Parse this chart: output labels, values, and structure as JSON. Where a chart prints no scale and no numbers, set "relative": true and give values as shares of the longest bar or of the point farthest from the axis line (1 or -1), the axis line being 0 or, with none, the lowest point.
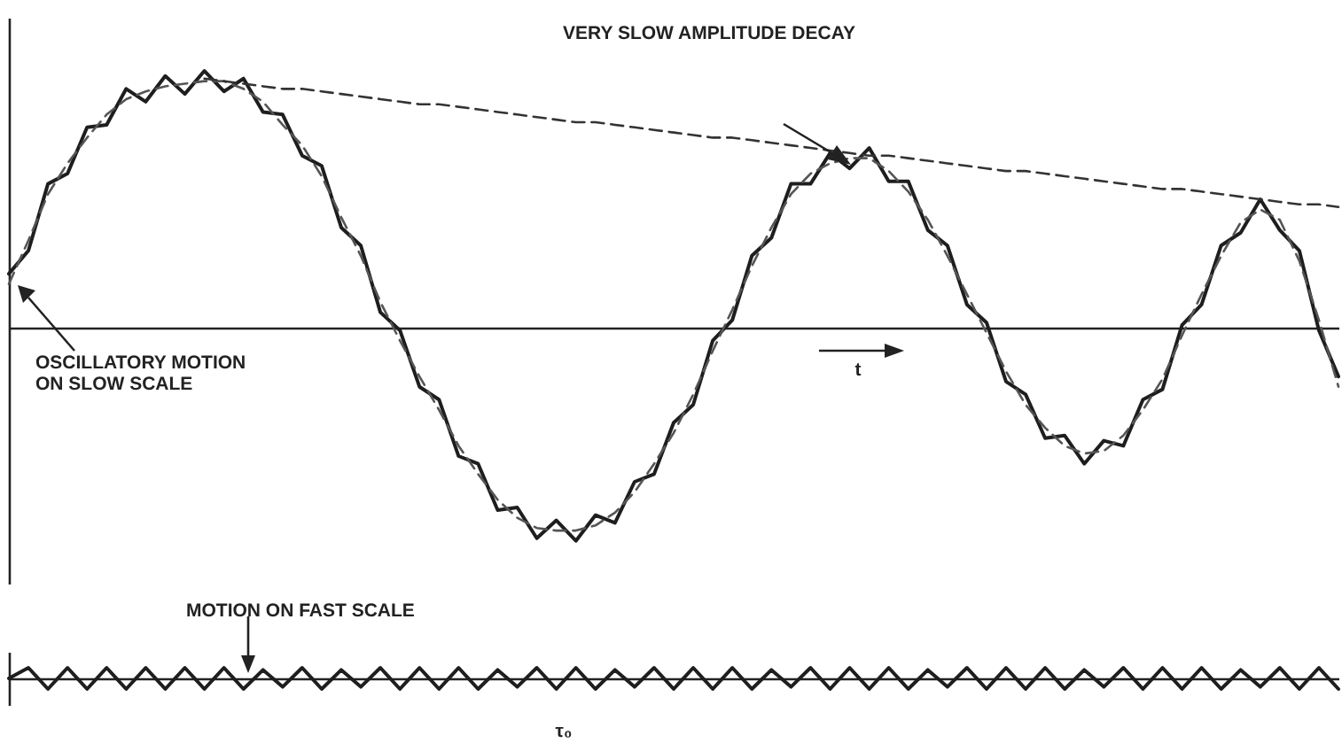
{
  "chart_data": [
    {
      "type": "line",
      "relative": true,
      "categories": [
        null,
        null,
        null,
        null,
        null,
        null,
        null,
        null,
        null,
        null,
        null,
        null,
        null,
        null,
        null,
        null,
        null,
        null,
        null,
        null,
        null,
        null,
        null,
        null,
        null,
        null,
        null,
        null,
        null,
        null,
        null,
        null,
        null,
        null,
        null,
        null,
        null,
        null,
        null,
        null,
        null,
        null,
        null,
        null,
        null,
        null,
        null,
        null,
        null,
        null,
        null,
        null,
        null,
        null,
        null,
        null,
        null,
        null,
        null,
        null,
        null,
        null,
        null,
        null,
        null,
        null,
        null,
        null,
        null
      ],
      "series": [
        {
          "color": "#1e1e1e",
          "line_style": "solid",
          "values": [
            0.21,
            0.3,
            0.56,
            0.6,
            0.78,
            0.79,
            0.93,
            0.88,
            0.98,
            0.91,
            1.0,
            0.92,
            0.97,
            0.84,
            0.83,
            0.67,
            0.63,
            0.39,
            0.32,
            0.06,
            -0.01,
            -0.23,
            -0.28,
            -0.5,
            -0.53,
            -0.71,
            -0.7,
            -0.82,
            -0.75,
            -0.83,
            -0.73,
            -0.76,
            -0.6,
            -0.57,
            -0.37,
            -0.3,
            -0.05,
            0.03,
            0.28,
            0.35,
            0.56,
            0.56,
            0.68,
            0.62,
            0.7,
            0.57,
            0.57,
            0.38,
            0.32,
            0.09,
            0.02,
            -0.21,
            -0.26,
            -0.43,
            -0.42,
            -0.53,
            -0.44,
            -0.46,
            -0.28,
            -0.24,
            0.01,
            0.09,
            0.32,
            0.37,
            0.5,
            0.38,
            0.3,
            -0.01,
            -0.19
          ]
        },
        {
          "color": "#555555",
          "line_style": "dashed",
          "values": [
            0.17,
            0.34,
            0.52,
            0.64,
            0.74,
            0.83,
            0.89,
            0.92,
            0.94,
            0.95,
            0.96,
            0.96,
            0.93,
            0.88,
            0.79,
            0.71,
            0.59,
            0.43,
            0.28,
            0.1,
            -0.05,
            -0.19,
            -0.32,
            -0.46,
            -0.57,
            -0.67,
            -0.74,
            -0.78,
            -0.79,
            -0.79,
            -0.77,
            -0.72,
            -0.64,
            -0.53,
            -0.41,
            -0.26,
            -0.09,
            0.07,
            0.24,
            0.39,
            0.52,
            0.6,
            0.64,
            0.66,
            0.66,
            0.61,
            0.53,
            0.42,
            0.28,
            0.13,
            -0.02,
            -0.17,
            -0.3,
            -0.39,
            -0.46,
            -0.49,
            -0.48,
            -0.42,
            -0.32,
            -0.2,
            -0.03,
            0.13,
            0.28,
            0.41,
            0.46,
            0.42,
            0.26,
            0.03,
            -0.23
          ]
        },
        {
          "color": "#333333",
          "line_style": "dashed",
          "values": [
            null,
            null,
            null,
            null,
            null,
            null,
            null,
            null,
            null,
            null,
            0.97,
            0.96,
            0.95,
            0.94,
            0.93,
            0.93,
            0.92,
            0.91,
            0.9,
            0.89,
            0.88,
            0.87,
            0.87,
            0.86,
            0.85,
            0.84,
            0.83,
            0.82,
            0.81,
            0.8,
            0.8,
            0.79,
            0.78,
            0.77,
            0.76,
            0.75,
            0.74,
            0.74,
            0.73,
            0.72,
            0.71,
            0.7,
            0.69,
            0.68,
            0.67,
            0.67,
            0.66,
            0.65,
            0.64,
            0.63,
            0.62,
            0.61,
            0.61,
            0.6,
            0.59,
            0.58,
            0.57,
            0.56,
            0.55,
            0.54,
            0.54,
            0.53,
            0.52,
            0.51,
            0.5,
            0.49,
            0.48,
            0.48,
            0.47
          ]
        }
      ],
      "annotations": [
        "VERY SLOW AMPLITUDE DECAY",
        "OSCILLATORY MOTION\nON SLOW SCALE",
        "t"
      ]
    },
    {
      "type": "line",
      "relative": true,
      "categories": [
        null,
        null,
        null,
        null,
        null,
        null,
        null,
        null,
        null,
        null,
        null,
        null,
        null,
        null,
        null,
        null,
        null,
        null,
        null,
        null,
        null,
        null,
        null,
        null,
        null,
        null,
        null,
        null,
        null,
        null,
        null,
        null,
        null,
        null,
        null,
        null,
        null,
        null,
        null,
        null,
        null,
        null,
        null,
        null,
        null,
        null,
        null,
        null,
        null,
        null,
        null,
        null,
        null,
        null,
        null,
        null,
        null,
        null,
        null,
        null,
        null,
        null,
        null,
        null,
        null,
        null,
        null,
        null,
        null
      ],
      "series": [
        {
          "color": "#1e1e1e",
          "line_style": "solid",
          "values": [
            0,
            1,
            -1,
            1,
            -1,
            1,
            -1,
            1,
            -1,
            1,
            -1,
            1,
            -1,
            0.8,
            -0.8,
            1,
            -1,
            0.8,
            -0.8,
            1,
            -1,
            1,
            -1,
            1,
            -1,
            0.8,
            -0.8,
            1,
            -1,
            1,
            -1,
            0.8,
            -0.8,
            1,
            -1,
            1,
            -1,
            1,
            -1,
            0.8,
            -0.8,
            1,
            -1,
            1,
            -1,
            1,
            -1,
            0.8,
            -0.8,
            1,
            -1,
            1,
            -1,
            1,
            -1,
            0.8,
            -0.8,
            1,
            -1,
            1,
            -1,
            1,
            -1,
            0.8,
            -0.8,
            1,
            -1,
            1,
            -1
          ]
        }
      ],
      "annotations": [
        "MOTION ON FAST SCALE",
        "τ₀"
      ]
    }
  ]
}
